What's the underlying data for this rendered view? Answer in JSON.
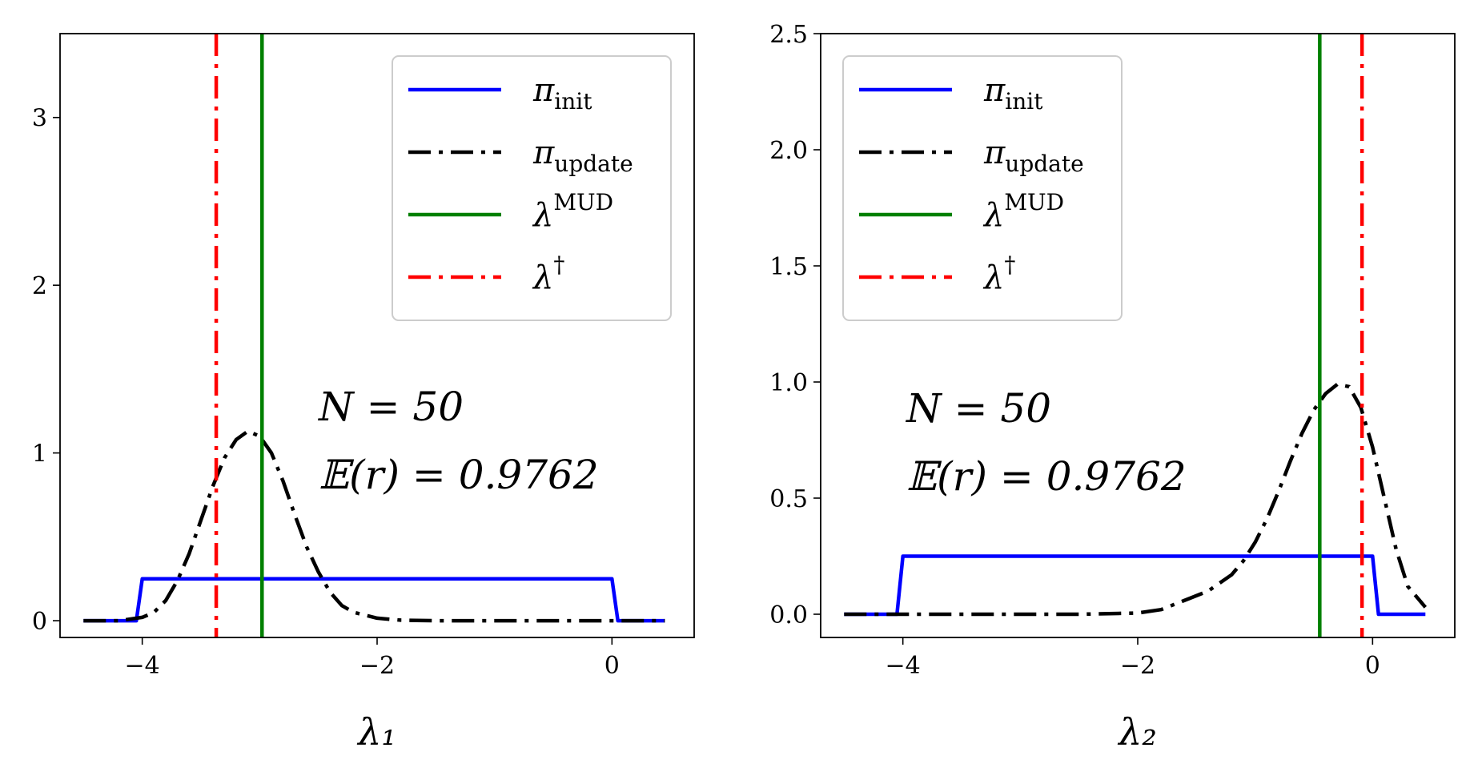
{
  "chart_data": [
    {
      "type": "line",
      "xlabel": "λ₁",
      "xlim": [
        -4.7,
        0.7
      ],
      "ylim": [
        -0.1,
        3.5
      ],
      "xticks": [
        -4,
        -2,
        0
      ],
      "xtick_labels": [
        "−4",
        "−2",
        "0"
      ],
      "yticks": [
        0,
        1,
        2,
        3
      ],
      "ytick_labels": [
        "0",
        "1",
        "2",
        "3"
      ],
      "legend_position": "top-right",
      "series": [
        {
          "name": "π_init",
          "style": "solid",
          "color": "#0000ff",
          "x": [
            -4.5,
            -4.05,
            -4.0,
            0.0,
            0.05,
            0.45
          ],
          "y": [
            0,
            0,
            0.25,
            0.25,
            0,
            0
          ]
        },
        {
          "name": "π_update",
          "style": "dashdot",
          "color": "#000000",
          "x": [
            -4.5,
            -4.2,
            -4.0,
            -3.9,
            -3.8,
            -3.7,
            -3.6,
            -3.5,
            -3.4,
            -3.3,
            -3.2,
            -3.1,
            -3.0,
            -2.9,
            -2.8,
            -2.7,
            -2.6,
            -2.5,
            -2.4,
            -2.3,
            -2.2,
            -2.0,
            -1.8,
            -1.5,
            -1.0,
            -0.5,
            0.0,
            0.45
          ],
          "y": [
            0,
            0,
            0.02,
            0.05,
            0.12,
            0.24,
            0.4,
            0.6,
            0.8,
            0.97,
            1.08,
            1.13,
            1.1,
            1.0,
            0.83,
            0.63,
            0.44,
            0.29,
            0.17,
            0.09,
            0.05,
            0.015,
            0.003,
            0,
            0,
            0,
            0,
            0
          ]
        },
        {
          "name": "λ^MUD",
          "style": "solid",
          "color": "#008000",
          "vline": -2.98
        },
        {
          "name": "λ^†",
          "style": "dashdot",
          "color": "#ff0000",
          "vline": -3.37
        }
      ],
      "legend_labels": [
        {
          "base": "π",
          "sub": "init",
          "sup": ""
        },
        {
          "base": "π",
          "sub": "update",
          "sup": ""
        },
        {
          "base": "λ",
          "sub": "",
          "sup": "MUD"
        },
        {
          "base": "λ",
          "sub": "",
          "sup": "†"
        }
      ],
      "annotations": [
        "N = 50",
        "𝔼(r) = 0.9762"
      ]
    },
    {
      "type": "line",
      "xlabel": "λ₂",
      "xlim": [
        -4.7,
        0.7
      ],
      "ylim": [
        -0.1,
        2.5
      ],
      "xticks": [
        -4,
        -2,
        0
      ],
      "xtick_labels": [
        "−4",
        "−2",
        "0"
      ],
      "yticks": [
        0,
        0.5,
        1.0,
        1.5,
        2.0,
        2.5
      ],
      "ytick_labels": [
        "0.0",
        "0.5",
        "1.0",
        "1.5",
        "2.0",
        "2.5"
      ],
      "legend_position": "top-left",
      "series": [
        {
          "name": "π_init",
          "style": "solid",
          "color": "#0000ff",
          "x": [
            -4.5,
            -4.05,
            -4.0,
            0.0,
            0.05,
            0.45
          ],
          "y": [
            0,
            0,
            0.25,
            0.25,
            0,
            0
          ]
        },
        {
          "name": "π_update",
          "style": "dashdot",
          "color": "#000000",
          "x": [
            -4.5,
            -3.5,
            -2.5,
            -2.0,
            -1.8,
            -1.6,
            -1.4,
            -1.2,
            -1.1,
            -1.0,
            -0.9,
            -0.8,
            -0.7,
            -0.6,
            -0.5,
            -0.4,
            -0.3,
            -0.2,
            -0.1,
            0.0,
            0.1,
            0.2,
            0.3,
            0.45
          ],
          "y": [
            0,
            0,
            0,
            0.005,
            0.02,
            0.06,
            0.1,
            0.17,
            0.23,
            0.31,
            0.41,
            0.53,
            0.66,
            0.78,
            0.88,
            0.95,
            0.99,
            0.98,
            0.89,
            0.72,
            0.5,
            0.28,
            0.12,
            0.03
          ]
        },
        {
          "name": "λ^MUD",
          "style": "solid",
          "color": "#008000",
          "vline": -0.45
        },
        {
          "name": "λ^†",
          "style": "dashdot",
          "color": "#ff0000",
          "vline": -0.09
        }
      ],
      "legend_labels": [
        {
          "base": "π",
          "sub": "init",
          "sup": ""
        },
        {
          "base": "π",
          "sub": "update",
          "sup": ""
        },
        {
          "base": "λ",
          "sub": "",
          "sup": "MUD"
        },
        {
          "base": "λ",
          "sub": "",
          "sup": "†"
        }
      ],
      "annotations": [
        "N = 50",
        "𝔼(r) = 0.9762"
      ]
    }
  ]
}
